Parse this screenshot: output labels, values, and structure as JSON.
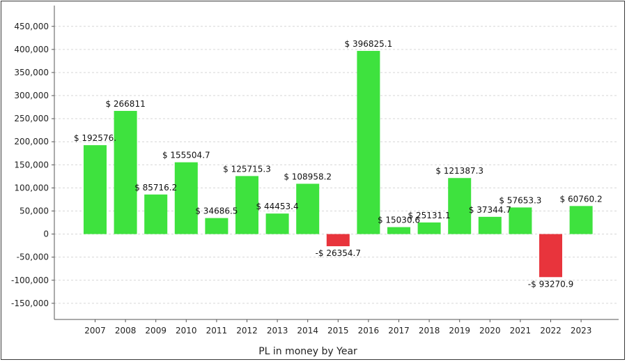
{
  "chart_data": {
    "type": "bar",
    "title": "",
    "xlabel": "PL in money by Year",
    "ylabel": "",
    "categories": [
      "2007",
      "2008",
      "2009",
      "2010",
      "2011",
      "2012",
      "2013",
      "2014",
      "2015",
      "2016",
      "2017",
      "2018",
      "2019",
      "2020",
      "2021",
      "2022",
      "2023"
    ],
    "values": [
      192576.5,
      266811,
      85716.2,
      155504.7,
      34686.5,
      125715.3,
      44453.4,
      108958.2,
      -26354.7,
      396825.1,
      15030.6,
      25131.1,
      121387.3,
      37344.7,
      57653.3,
      -93270.9,
      60760.2
    ],
    "data_labels": [
      "$ 192576.",
      "$ 266811",
      "$ 85716.2",
      "$ 155504.7",
      "$ 34686.5",
      "$ 125715.3",
      "$ 44453.4",
      "$ 108958.2",
      "-$ 26354.7",
      "$ 396825.1",
      "$ 15030.6",
      "$ 25131.1",
      "$ 121387.3",
      "$ 37344.7",
      "$ 57653.3",
      "-$ 93270.9",
      "$ 60760.2"
    ],
    "y_ticks": [
      "450,000",
      "400,000",
      "350,000",
      "300,000",
      "250,000",
      "200,000",
      "150,000",
      "100,000",
      "50,000",
      "0",
      "-50,000",
      "-100,000",
      "-150,000"
    ],
    "ylim": [
      -185000,
      495000
    ],
    "grid": true,
    "positive_color": "#3ee23e",
    "negative_color": "#e8343c"
  }
}
